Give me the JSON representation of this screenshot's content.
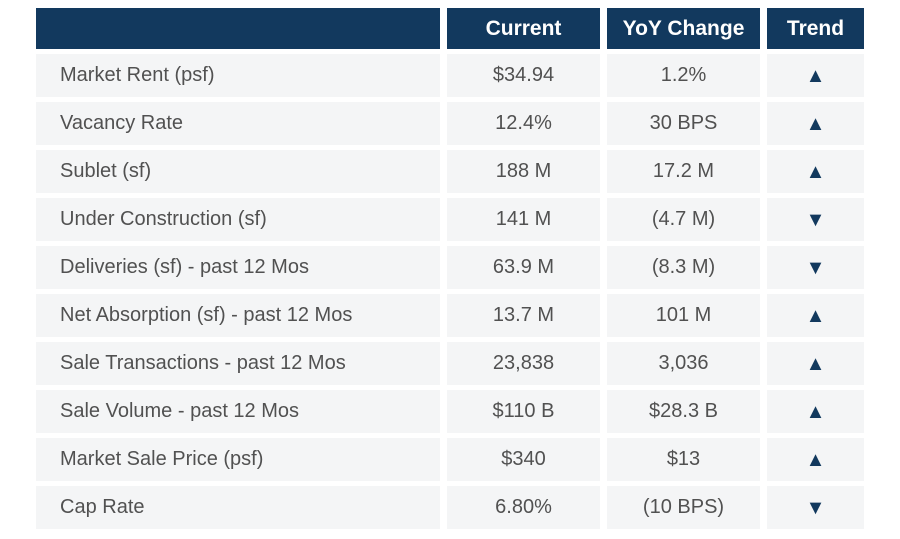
{
  "chart_data": {
    "type": "table",
    "columns": [
      "",
      "Current",
      "YoY Change",
      "Trend"
    ],
    "rows": [
      {
        "label": "Market Rent (psf)",
        "current": "$34.94",
        "yoy_change": "1.2%",
        "trend": "up"
      },
      {
        "label": "Vacancy Rate",
        "current": "12.4%",
        "yoy_change": "30 BPS",
        "trend": "up"
      },
      {
        "label": "Sublet (sf)",
        "current": "188 M",
        "yoy_change": "17.2 M",
        "trend": "up"
      },
      {
        "label": "Under Construction (sf)",
        "current": "141 M",
        "yoy_change": "(4.7 M)",
        "trend": "down"
      },
      {
        "label": "Deliveries (sf) - past 12 Mos",
        "current": "63.9 M",
        "yoy_change": "(8.3 M)",
        "trend": "down"
      },
      {
        "label": "Net Absorption (sf) - past 12 Mos",
        "current": "13.7 M",
        "yoy_change": "101 M",
        "trend": "up"
      },
      {
        "label": "Sale Transactions - past 12 Mos",
        "current": "23,838",
        "yoy_change": "3,036",
        "trend": "up"
      },
      {
        "label": "Sale Volume - past 12 Mos",
        "current": "$110 B",
        "yoy_change": "$28.3 B",
        "trend": "up"
      },
      {
        "label": "Market Sale Price (psf)",
        "current": "$340",
        "yoy_change": "$13",
        "trend": "up"
      },
      {
        "label": "Cap Rate",
        "current": "6.80%",
        "yoy_change": "(10 BPS)",
        "trend": "down"
      }
    ],
    "icons": {
      "up": "▲",
      "down": "▼"
    },
    "colors": {
      "header_bg": "#12395E",
      "header_text": "#FFFFFF",
      "row_bg": "#F4F5F6",
      "row_text": "#515151",
      "trend_color": "#12395E",
      "page_bg": "#FFFFFF"
    }
  }
}
